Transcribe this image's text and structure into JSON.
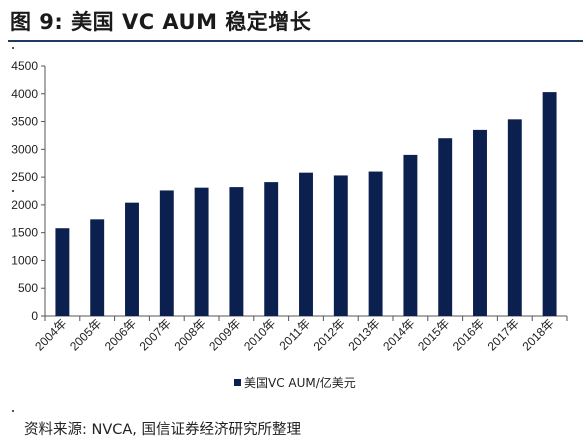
{
  "header": {
    "title": "图 9:  美国 VC AUM 稳定增长"
  },
  "footer": {
    "source": "资料来源: NVCA, 国信证券经济研究所整理"
  },
  "chart_data": {
    "type": "bar",
    "categories": [
      "2004年",
      "2005年",
      "2006年",
      "2007年",
      "2008年",
      "2009年",
      "2010年",
      "2011年",
      "2012年",
      "2013年",
      "2014年",
      "2015年",
      "2016年",
      "2017年",
      "2018年"
    ],
    "series": [
      {
        "name": "美国VC AUM/亿美元",
        "values": [
          1580,
          1740,
          2040,
          2260,
          2310,
          2320,
          2410,
          2580,
          2530,
          2600,
          2900,
          3200,
          3350,
          3540,
          4030
        ],
        "color": "#0c2050"
      }
    ],
    "yticks": [
      0,
      500,
      1000,
      1500,
      2000,
      2500,
      3000,
      3500,
      4000,
      4500
    ],
    "ylim": [
      0,
      4500
    ],
    "grid": false,
    "legend_position": "bottom"
  }
}
